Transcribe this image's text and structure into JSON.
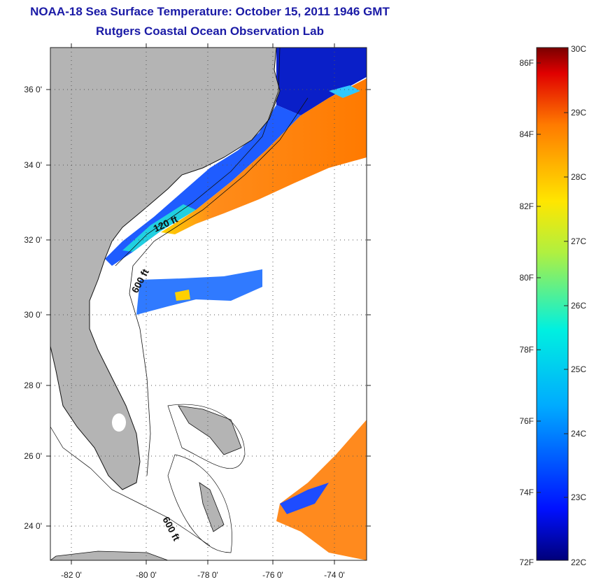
{
  "title": {
    "line1": "NOAA-18 Sea Surface Temperature:  October 15, 2011 1946 GMT",
    "line2": "Rutgers Coastal Ocean Observation Lab"
  },
  "map": {
    "lon_ticks": [
      "-82 0'",
      "-80 0'",
      "-78 0'",
      "-76 0'",
      "-74 0'"
    ],
    "lat_ticks": [
      "36 0'",
      "34 0'",
      "32 0'",
      "30 0'",
      "28 0'",
      "26 0'",
      "24 0'"
    ],
    "contour_labels": [
      "120 ft",
      "600 ft",
      "600 ft"
    ],
    "colors": {
      "land": "#b4b4b4",
      "cloud": "#ffffff",
      "gulfstream": "#ff8a1e",
      "shelf": "#1e3cff"
    }
  },
  "colorbar": {
    "fahrenheit": [
      "86F",
      "84F",
      "82F",
      "80F",
      "78F",
      "76F",
      "74F",
      "72F"
    ],
    "celsius": [
      "30C",
      "29C",
      "28C",
      "27C",
      "26C",
      "25C",
      "24C",
      "23C",
      "22C"
    ]
  }
}
